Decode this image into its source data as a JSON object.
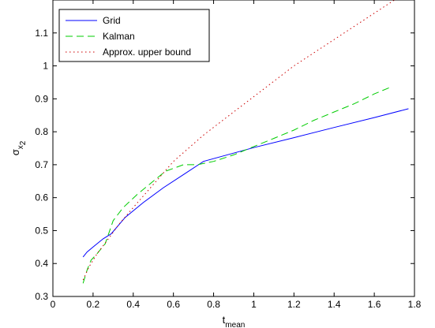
{
  "chart_data": {
    "type": "line",
    "title": "",
    "xlabel": {
      "main": "t",
      "subscript": "mean"
    },
    "ylabel": {
      "main": "σ",
      "subscript": "x",
      "subsubscript": "2"
    },
    "xlim": [
      0,
      1.8
    ],
    "ylim": [
      0.3,
      1.2
    ],
    "xticks": [
      0,
      0.2,
      0.4,
      0.6,
      0.8,
      1,
      1.2,
      1.4,
      1.6,
      1.8
    ],
    "xtick_labels": [
      "0",
      "0.2",
      "0.4",
      "0.6",
      "0.8",
      "1",
      "1.2",
      "1.4",
      "1.6",
      "1.8"
    ],
    "yticks": [
      0.3,
      0.4,
      0.5,
      0.6,
      0.7,
      0.8,
      0.9,
      1,
      1.1
    ],
    "ytick_labels": [
      "0.3",
      "0.4",
      "0.5",
      "0.6",
      "0.7",
      "0.8",
      "0.9",
      "1",
      "1.1"
    ],
    "grid": false,
    "legend_position": "top-left",
    "series": [
      {
        "name": "Grid",
        "color": "#0000ff",
        "style": "solid",
        "x": [
          0.15,
          0.17,
          0.2,
          0.25,
          0.29,
          0.36,
          0.45,
          0.55,
          0.65,
          0.75,
          1.0,
          1.2,
          1.4,
          1.6,
          1.77
        ],
        "y": [
          0.42,
          0.435,
          0.45,
          0.475,
          0.49,
          0.54,
          0.585,
          0.63,
          0.67,
          0.71,
          0.752,
          0.782,
          0.813,
          0.843,
          0.87
        ]
      },
      {
        "name": "Kalman",
        "color": "#00cc00",
        "style": "dashed",
        "x": [
          0.15,
          0.17,
          0.19,
          0.22,
          0.26,
          0.3,
          0.35,
          0.42,
          0.5,
          0.56,
          0.65,
          0.72,
          0.8,
          0.9,
          1.0,
          1.1,
          1.2,
          1.3,
          1.4,
          1.5,
          1.6,
          1.68
        ],
        "y": [
          0.34,
          0.38,
          0.41,
          0.43,
          0.46,
          0.53,
          0.57,
          0.61,
          0.65,
          0.68,
          0.7,
          0.7,
          0.71,
          0.73,
          0.755,
          0.78,
          0.805,
          0.835,
          0.86,
          0.885,
          0.915,
          0.935
        ]
      },
      {
        "name": "Approx. upper bound",
        "color": "#cc0000",
        "style": "dotted",
        "x": [
          0.15,
          0.18,
          0.22,
          0.27,
          0.33,
          0.4,
          0.5,
          0.6,
          0.75,
          0.9,
          1.05,
          1.2,
          1.35,
          1.5,
          1.65,
          1.8
        ],
        "y": [
          0.35,
          0.39,
          0.43,
          0.47,
          0.52,
          0.57,
          0.64,
          0.71,
          0.79,
          0.86,
          0.93,
          1.0,
          1.06,
          1.12,
          1.18,
          1.24
        ]
      }
    ]
  }
}
